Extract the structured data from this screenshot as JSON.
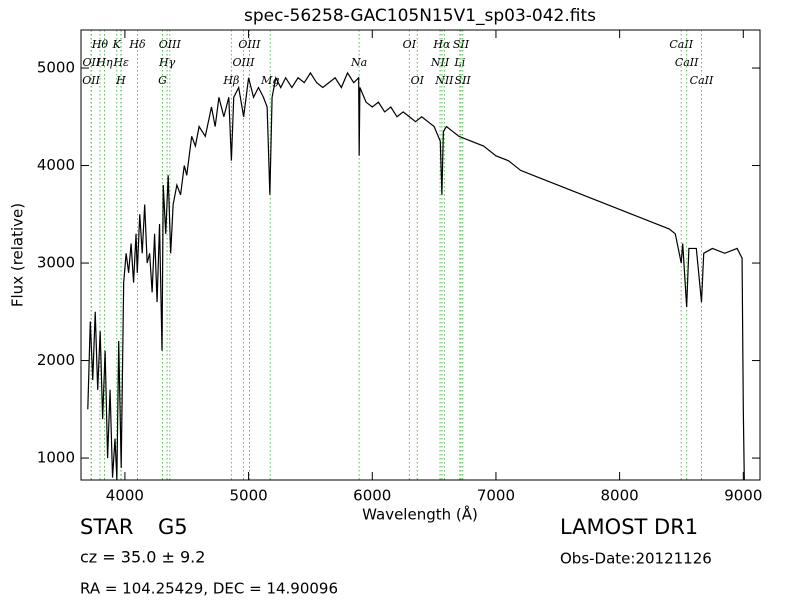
{
  "chart_data": {
    "type": "line",
    "title": "spec-56258-GAC105N15V1_sp03-042.fits",
    "xlabel": "Wavelength (Å)",
    "ylabel": "Flux (relative)",
    "xlim": [
      3645,
      9135
    ],
    "ylim": [
      775,
      5390
    ],
    "xticks": [
      4000,
      5000,
      6000,
      7000,
      8000,
      9000
    ],
    "yticks": [
      1000,
      2000,
      3000,
      4000,
      5000
    ],
    "x": [
      3700,
      3720,
      3740,
      3760,
      3780,
      3800,
      3820,
      3840,
      3860,
      3880,
      3900,
      3920,
      3935,
      3950,
      3970,
      3990,
      4010,
      4030,
      4050,
      4070,
      4090,
      4100,
      4120,
      4140,
      4160,
      4180,
      4200,
      4220,
      4240,
      4260,
      4280,
      4300,
      4310,
      4330,
      4350,
      4370,
      4390,
      4420,
      4450,
      4480,
      4500,
      4540,
      4570,
      4600,
      4650,
      4700,
      4730,
      4760,
      4800,
      4840,
      4861,
      4880,
      4920,
      4960,
      5000,
      5040,
      5080,
      5120,
      5150,
      5172,
      5190,
      5220,
      5260,
      5300,
      5350,
      5400,
      5450,
      5500,
      5550,
      5600,
      5650,
      5700,
      5750,
      5800,
      5850,
      5890,
      5894,
      5900,
      5950,
      6000,
      6050,
      6100,
      6150,
      6200,
      6250,
      6300,
      6350,
      6400,
      6450,
      6500,
      6550,
      6563,
      6575,
      6600,
      6650,
      6700,
      6800,
      6900,
      7000,
      7100,
      7200,
      7300,
      7400,
      7500,
      7600,
      7700,
      7800,
      7900,
      8000,
      8100,
      8200,
      8300,
      8400,
      8450,
      8498,
      8510,
      8542,
      8560,
      8620,
      8662,
      8680,
      8750,
      8850,
      8950,
      8990,
      9000,
      9010
    ],
    "series": [
      {
        "name": "flux",
        "color": "#000000",
        "values": [
          1500,
          2400,
          1800,
          2500,
          1700,
          2300,
          1400,
          2100,
          1000,
          1700,
          800,
          1200,
          780,
          2200,
          900,
          2800,
          3100,
          2900,
          3200,
          2800,
          3300,
          2900,
          3500,
          3100,
          3600,
          3000,
          3100,
          2700,
          3300,
          2600,
          3400,
          2100,
          3800,
          3300,
          3900,
          3100,
          3600,
          3800,
          3700,
          4000,
          3900,
          4300,
          4200,
          4400,
          4300,
          4600,
          4400,
          4700,
          4500,
          4700,
          4050,
          4700,
          4800,
          4500,
          4900,
          4700,
          4800,
          4700,
          4600,
          3700,
          4700,
          4900,
          4800,
          4900,
          4800,
          4900,
          4850,
          4950,
          4850,
          4800,
          4850,
          4900,
          4800,
          4950,
          4850,
          4900,
          4100,
          4800,
          4650,
          4600,
          4650,
          4550,
          4600,
          4500,
          4550,
          4500,
          4450,
          4500,
          4450,
          4400,
          4250,
          3700,
          4350,
          4400,
          4350,
          4300,
          4250,
          4200,
          4100,
          4050,
          3950,
          3900,
          3850,
          3800,
          3750,
          3700,
          3650,
          3600,
          3550,
          3500,
          3450,
          3400,
          3350,
          3300,
          3000,
          3200,
          2550,
          3150,
          3150,
          2600,
          3100,
          3150,
          3100,
          3150,
          3050,
          1500,
          600
        ]
      }
    ],
    "lines": [
      {
        "wavelength": 3727,
        "label": "OII"
      },
      {
        "wavelength": 3729,
        "label": "OII"
      },
      {
        "wavelength": 3798,
        "label": "Hθ"
      },
      {
        "wavelength": 3835,
        "label": "Hη"
      },
      {
        "wavelength": 3934,
        "label": "K"
      },
      {
        "wavelength": 3970,
        "label": "Hε"
      },
      {
        "wavelength": 3968,
        "label": "H"
      },
      {
        "wavelength": 4102,
        "label": "Hδ"
      },
      {
        "wavelength": 4304,
        "label": "G"
      },
      {
        "wavelength": 4341,
        "label": "Hγ"
      },
      {
        "wavelength": 4363,
        "label": "OIII"
      },
      {
        "wavelength": 4861,
        "label": "Hβ"
      },
      {
        "wavelength": 4959,
        "label": "OIII"
      },
      {
        "wavelength": 5007,
        "label": "OIII"
      },
      {
        "wavelength": 5175,
        "label": "Mg"
      },
      {
        "wavelength": 5894,
        "label": "Na"
      },
      {
        "wavelength": 6300,
        "label": "OI"
      },
      {
        "wavelength": 6364,
        "label": "OI"
      },
      {
        "wavelength": 6548,
        "label": "NII"
      },
      {
        "wavelength": 6563,
        "label": "Hα"
      },
      {
        "wavelength": 6583,
        "label": "NII"
      },
      {
        "wavelength": 6708,
        "label": "Li"
      },
      {
        "wavelength": 6717,
        "label": "SII"
      },
      {
        "wavelength": 6731,
        "label": "SII"
      },
      {
        "wavelength": 8498,
        "label": "CaII"
      },
      {
        "wavelength": 8542,
        "label": "CaII"
      },
      {
        "wavelength": 8662,
        "label": "CaII"
      }
    ],
    "line_color": "#5cb85c"
  },
  "info": {
    "object": "STAR",
    "subclass": "G5",
    "cz": "cz = 35.0  ± 9.2",
    "coords": "RA = 104.25429, DEC = 14.90096",
    "survey": "LAMOST DR1",
    "obs_date": "Obs-Date:20121126"
  }
}
